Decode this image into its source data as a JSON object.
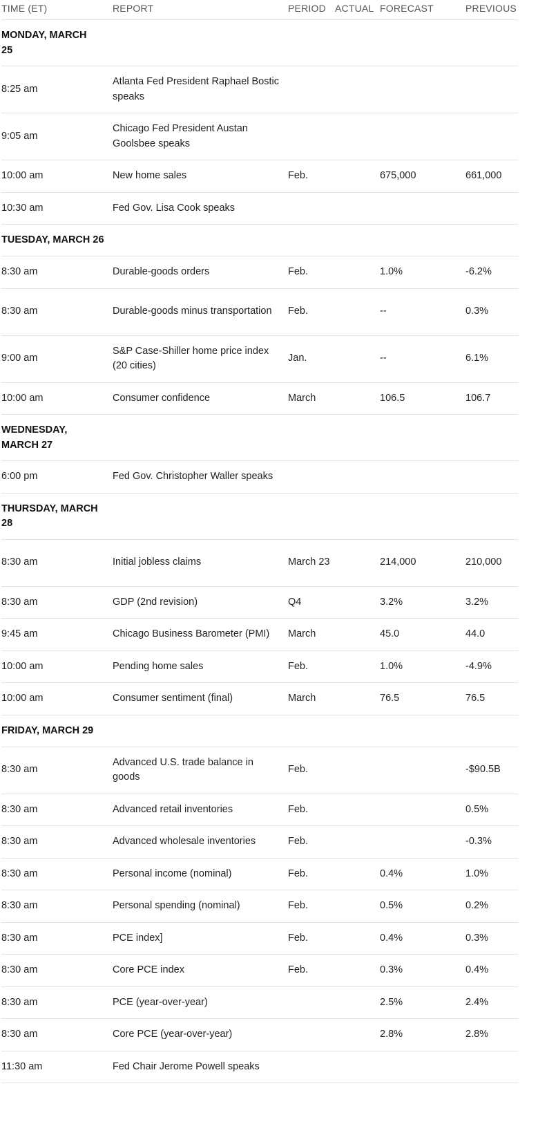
{
  "headers": {
    "time": "TIME (ET)",
    "report": "REPORT",
    "period": "PERIOD",
    "actual": "ACTUAL",
    "forecast": "FORECAST",
    "previous": "PREVIOUS"
  },
  "sections": [
    {
      "day": "MONDAY, MARCH 25",
      "rows": [
        {
          "time": "8:25 am",
          "report": "Atlanta Fed President Raphael Bostic speaks",
          "period": "",
          "actual": "",
          "forecast": "",
          "previous": ""
        },
        {
          "time": "9:05 am",
          "report": "Chicago Fed President Austan Goolsbee speaks",
          "period": "",
          "actual": "",
          "forecast": "",
          "previous": ""
        },
        {
          "time": "10:00 am",
          "report": "New home sales",
          "period": "Feb.",
          "actual": "",
          "forecast": "675,000",
          "previous": "661,000"
        },
        {
          "time": "10:30 am",
          "report": "Fed Gov. Lisa Cook speaks",
          "period": "",
          "actual": "",
          "forecast": "",
          "previous": ""
        }
      ]
    },
    {
      "day": "TUESDAY, MARCH 26",
      "rows": [
        {
          "time": "8:30 am",
          "report": "Durable-goods orders",
          "period": "Feb.",
          "actual": "",
          "forecast": "1.0%",
          "previous": "-6.2%"
        },
        {
          "time": "8:30 am",
          "report": "Durable-goods minus transportation",
          "period": "Feb.",
          "actual": "",
          "forecast": "--",
          "previous": "0.3%"
        },
        {
          "time": "9:00 am",
          "report": "S&P Case-Shiller home price index (20 cities)",
          "period": "Jan.",
          "actual": "",
          "forecast": "--",
          "previous": "6.1%"
        },
        {
          "time": "10:00 am",
          "report": "Consumer confidence",
          "period": "March",
          "actual": "",
          "forecast": "106.5",
          "previous": "106.7"
        }
      ]
    },
    {
      "day": "WEDNESDAY, MARCH 27",
      "rows": [
        {
          "time": "6:00 pm",
          "report": "Fed Gov. Christopher Waller speaks",
          "period": "",
          "actual": "",
          "forecast": "",
          "previous": ""
        }
      ]
    },
    {
      "day": "THURSDAY, MARCH 28",
      "rows": [
        {
          "time": "8:30 am",
          "report": "Initial jobless claims",
          "period": "March 23",
          "actual": "",
          "forecast": "214,000",
          "previous": "210,000"
        },
        {
          "time": "8:30 am",
          "report": "GDP (2nd revision)",
          "period": "Q4",
          "actual": "",
          "forecast": "3.2%",
          "previous": "3.2%"
        },
        {
          "time": "9:45 am",
          "report": "Chicago Business Barometer (PMI)",
          "period": "March",
          "actual": "",
          "forecast": "45.0",
          "previous": "44.0"
        },
        {
          "time": "10:00 am",
          "report": "Pending home sales",
          "period": "Feb.",
          "actual": "",
          "forecast": "1.0%",
          "previous": "-4.9%"
        },
        {
          "time": "10:00 am",
          "report": "Consumer sentiment (final)",
          "period": "March",
          "actual": "",
          "forecast": "76.5",
          "previous": "76.5"
        }
      ]
    },
    {
      "day": "FRIDAY, MARCH 29",
      "rows": [
        {
          "time": "8:30 am",
          "report": "Advanced U.S. trade balance in goods",
          "period": "Feb.",
          "actual": "",
          "forecast": "",
          "previous": "-$90.5B"
        },
        {
          "time": "8:30 am",
          "report": "Advanced retail inventories",
          "period": "Feb.",
          "actual": "",
          "forecast": "",
          "previous": "0.5%"
        },
        {
          "time": "8:30 am",
          "report": "Advanced wholesale inventories",
          "period": "Feb.",
          "actual": "",
          "forecast": "",
          "previous": "-0.3%"
        },
        {
          "time": "8:30 am",
          "report": "Personal income (nominal)",
          "period": "Feb.",
          "actual": "",
          "forecast": "0.4%",
          "previous": "1.0%"
        },
        {
          "time": "8:30 am",
          "report": "Personal spending (nominal)",
          "period": "Feb.",
          "actual": "",
          "forecast": "0.5%",
          "previous": "0.2%"
        },
        {
          "time": "8:30 am",
          "report": "PCE index]",
          "period": "Feb.",
          "actual": "",
          "forecast": "0.4%",
          "previous": "0.3%"
        },
        {
          "time": "8:30 am",
          "report": "Core PCE index",
          "period": "Feb.",
          "actual": "",
          "forecast": "0.3%",
          "previous": "0.4%"
        },
        {
          "time": "8:30 am",
          "report": "PCE (year-over-year)",
          "period": "",
          "actual": "",
          "forecast": "2.5%",
          "previous": "2.4%"
        },
        {
          "time": "8:30 am",
          "report": "Core PCE (year-over-year)",
          "period": "",
          "actual": "",
          "forecast": "2.8%",
          "previous": "2.8%"
        },
        {
          "time": "11:30 am",
          "report": "Fed Chair Jerome Powell speaks",
          "period": "",
          "actual": "",
          "forecast": "",
          "previous": ""
        }
      ]
    }
  ]
}
